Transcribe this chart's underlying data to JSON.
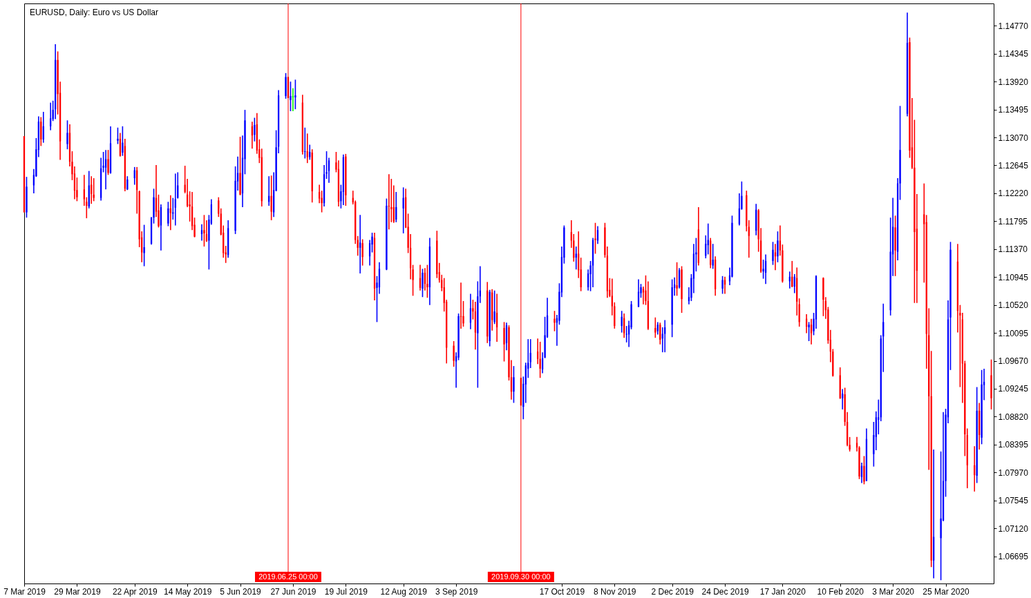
{
  "chart_data": {
    "type": "candlestick",
    "title": "EURUSD, Daily: Euro vs US Dollar",
    "x": [
      "2019-03-07",
      "2019-03-08",
      "2019-03-11",
      "2019-03-12",
      "2019-03-13",
      "2019-03-14",
      "2019-03-15",
      "2019-03-18",
      "2019-03-19",
      "2019-03-20",
      "2019-03-21",
      "2019-03-22",
      "2019-03-25",
      "2019-03-26",
      "2019-03-27",
      "2019-03-28",
      "2019-03-29",
      "2019-04-01",
      "2019-04-02",
      "2019-04-03",
      "2019-04-04",
      "2019-04-05",
      "2019-04-08",
      "2019-04-09",
      "2019-04-10",
      "2019-04-11",
      "2019-04-12",
      "2019-04-15",
      "2019-04-16",
      "2019-04-17",
      "2019-04-18",
      "2019-04-19",
      "2019-04-22",
      "2019-04-23",
      "2019-04-24",
      "2019-04-25",
      "2019-04-26",
      "2019-04-29",
      "2019-04-30",
      "2019-05-01",
      "2019-05-02",
      "2019-05-03",
      "2019-05-06",
      "2019-05-07",
      "2019-05-08",
      "2019-05-09",
      "2019-05-10",
      "2019-05-13",
      "2019-05-14",
      "2019-05-15",
      "2019-05-16",
      "2019-05-17",
      "2019-05-20",
      "2019-05-21",
      "2019-05-22",
      "2019-05-23",
      "2019-05-24",
      "2019-05-27",
      "2019-05-28",
      "2019-05-29",
      "2019-05-30",
      "2019-05-31",
      "2019-06-03",
      "2019-06-04",
      "2019-06-05",
      "2019-06-06",
      "2019-06-07",
      "2019-06-10",
      "2019-06-11",
      "2019-06-12",
      "2019-06-13",
      "2019-06-14",
      "2019-06-17",
      "2019-06-18",
      "2019-06-19",
      "2019-06-20",
      "2019-06-21",
      "2019-06-24",
      "2019-06-25",
      "2019-06-26",
      "2019-06-27",
      "2019-06-28",
      "2019-07-01",
      "2019-07-02",
      "2019-07-03",
      "2019-07-04",
      "2019-07-05",
      "2019-07-08",
      "2019-07-09",
      "2019-07-10",
      "2019-07-11",
      "2019-07-12",
      "2019-07-15",
      "2019-07-16",
      "2019-07-17",
      "2019-07-18",
      "2019-07-19",
      "2019-07-22",
      "2019-07-23",
      "2019-07-24",
      "2019-07-25",
      "2019-07-26",
      "2019-07-29",
      "2019-07-30",
      "2019-07-31",
      "2019-08-01",
      "2019-08-02",
      "2019-08-05",
      "2019-08-06",
      "2019-08-07",
      "2019-08-08",
      "2019-08-09",
      "2019-08-12",
      "2019-08-13",
      "2019-08-14",
      "2019-08-15",
      "2019-08-16",
      "2019-08-19",
      "2019-08-20",
      "2019-08-21",
      "2019-08-22",
      "2019-08-23",
      "2019-08-26",
      "2019-08-27",
      "2019-08-28",
      "2019-08-29",
      "2019-08-30",
      "2019-09-02",
      "2019-09-03",
      "2019-09-04",
      "2019-09-05",
      "2019-09-06",
      "2019-09-09",
      "2019-09-10",
      "2019-09-11",
      "2019-09-12",
      "2019-09-13",
      "2019-09-16",
      "2019-09-17",
      "2019-09-18",
      "2019-09-19",
      "2019-09-20",
      "2019-09-23",
      "2019-09-24",
      "2019-09-25",
      "2019-09-26",
      "2019-09-27",
      "2019-09-30",
      "2019-10-01",
      "2019-10-02",
      "2019-10-03",
      "2019-10-04",
      "2019-10-07",
      "2019-10-08",
      "2019-10-09",
      "2019-10-10",
      "2019-10-11",
      "2019-10-14",
      "2019-10-15",
      "2019-10-16",
      "2019-10-17",
      "2019-10-18",
      "2019-10-21",
      "2019-10-22",
      "2019-10-23",
      "2019-10-24",
      "2019-10-25",
      "2019-10-28",
      "2019-10-29",
      "2019-10-30",
      "2019-10-31",
      "2019-11-01",
      "2019-11-04",
      "2019-11-05",
      "2019-11-06",
      "2019-11-07",
      "2019-11-08",
      "2019-11-11",
      "2019-11-12",
      "2019-11-13",
      "2019-11-14",
      "2019-11-15",
      "2019-11-18",
      "2019-11-19",
      "2019-11-20",
      "2019-11-21",
      "2019-11-22",
      "2019-11-25",
      "2019-11-26",
      "2019-11-27",
      "2019-11-28",
      "2019-11-29",
      "2019-12-02",
      "2019-12-03",
      "2019-12-04",
      "2019-12-05",
      "2019-12-06",
      "2019-12-09",
      "2019-12-10",
      "2019-12-11",
      "2019-12-12",
      "2019-12-13",
      "2019-12-16",
      "2019-12-17",
      "2019-12-18",
      "2019-12-19",
      "2019-12-20",
      "2019-12-23",
      "2019-12-24",
      "2019-12-26",
      "2019-12-27",
      "2019-12-30",
      "2019-12-31",
      "2020-01-02",
      "2020-01-03",
      "2020-01-06",
      "2020-01-07",
      "2020-01-08",
      "2020-01-09",
      "2020-01-10",
      "2020-01-13",
      "2020-01-14",
      "2020-01-15",
      "2020-01-16",
      "2020-01-17",
      "2020-01-20",
      "2020-01-21",
      "2020-01-22",
      "2020-01-23",
      "2020-01-24",
      "2020-01-27",
      "2020-01-28",
      "2020-01-29",
      "2020-01-30",
      "2020-01-31",
      "2020-02-03",
      "2020-02-04",
      "2020-02-05",
      "2020-02-06",
      "2020-02-07",
      "2020-02-10",
      "2020-02-11",
      "2020-02-12",
      "2020-02-13",
      "2020-02-14",
      "2020-02-17",
      "2020-02-18",
      "2020-02-19",
      "2020-02-20",
      "2020-02-21",
      "2020-02-24",
      "2020-02-25",
      "2020-02-26",
      "2020-02-27",
      "2020-02-28",
      "2020-03-02",
      "2020-03-03",
      "2020-03-04",
      "2020-03-05",
      "2020-03-06",
      "2020-03-09",
      "2020-03-10",
      "2020-03-11",
      "2020-03-12",
      "2020-03-13",
      "2020-03-16",
      "2020-03-17",
      "2020-03-18",
      "2020-03-19",
      "2020-03-20",
      "2020-03-23",
      "2020-03-24",
      "2020-03-25",
      "2020-03-26",
      "2020-03-27",
      "2020-03-30",
      "2020-03-31",
      "2020-04-01",
      "2020-04-02",
      "2020-04-03",
      "2020-04-06",
      "2020-04-07",
      "2020-04-08",
      "2020-04-09",
      "2020-04-10",
      "2020-04-13"
    ],
    "ohlc": [
      [
        1.1309,
        1.1309,
        1.1193,
        1.1193
      ],
      [
        1.1193,
        1.1247,
        1.1185,
        1.1232
      ],
      [
        1.1234,
        1.1259,
        1.1222,
        1.125
      ],
      [
        1.1248,
        1.1306,
        1.1247,
        1.1289
      ],
      [
        1.1288,
        1.1339,
        1.1277,
        1.1331
      ],
      [
        1.1331,
        1.1338,
        1.1294,
        1.1304
      ],
      [
        1.1304,
        1.1346,
        1.1299,
        1.1324
      ],
      [
        1.1324,
        1.136,
        1.1318,
        1.1336
      ],
      [
        1.1335,
        1.1363,
        1.1332,
        1.1349
      ],
      [
        1.135,
        1.1449,
        1.1335,
        1.1425
      ],
      [
        1.1425,
        1.1438,
        1.1342,
        1.1373
      ],
      [
        1.1375,
        1.1392,
        1.1273,
        1.1301
      ],
      [
        1.1297,
        1.1333,
        1.1289,
        1.1314
      ],
      [
        1.1314,
        1.1327,
        1.1263,
        1.127
      ],
      [
        1.127,
        1.1286,
        1.1242,
        1.1251
      ],
      [
        1.1252,
        1.1263,
        1.1213,
        1.1226
      ],
      [
        1.1227,
        1.1246,
        1.121,
        1.1216
      ],
      [
        1.1228,
        1.125,
        1.1203,
        1.1213
      ],
      [
        1.1209,
        1.1216,
        1.1184,
        1.1203
      ],
      [
        1.1202,
        1.1256,
        1.1199,
        1.1234
      ],
      [
        1.1235,
        1.1248,
        1.1206,
        1.1221
      ],
      [
        1.122,
        1.1245,
        1.121,
        1.1215
      ],
      [
        1.1215,
        1.1276,
        1.1211,
        1.126
      ],
      [
        1.1261,
        1.1285,
        1.1254,
        1.1264
      ],
      [
        1.1261,
        1.1288,
        1.1228,
        1.1274
      ],
      [
        1.1274,
        1.1288,
        1.125,
        1.1253
      ],
      [
        1.1253,
        1.1324,
        1.1252,
        1.1298
      ],
      [
        1.1302,
        1.1322,
        1.1297,
        1.1305
      ],
      [
        1.1305,
        1.1314,
        1.1278,
        1.1279
      ],
      [
        1.1284,
        1.1324,
        1.1279,
        1.1299
      ],
      [
        1.1294,
        1.1305,
        1.1225,
        1.1229
      ],
      [
        1.1228,
        1.1248,
        1.1227,
        1.1243
      ],
      [
        1.1245,
        1.1262,
        1.1235,
        1.1257
      ],
      [
        1.1257,
        1.1262,
        1.1191,
        1.1227
      ],
      [
        1.1225,
        1.1226,
        1.114,
        1.1152
      ],
      [
        1.1155,
        1.1164,
        1.1117,
        1.1132
      ],
      [
        1.1131,
        1.1174,
        1.1111,
        1.114
      ],
      [
        1.1145,
        1.1186,
        1.1144,
        1.1185
      ],
      [
        1.1185,
        1.1229,
        1.1176,
        1.1216
      ],
      [
        1.1215,
        1.1265,
        1.1186,
        1.1194
      ],
      [
        1.1196,
        1.122,
        1.117,
        1.1172
      ],
      [
        1.1173,
        1.1205,
        1.1135,
        1.1201
      ],
      [
        1.1176,
        1.1209,
        1.1172,
        1.1199
      ],
      [
        1.1199,
        1.1219,
        1.1166,
        1.1192
      ],
      [
        1.1191,
        1.1215,
        1.1182,
        1.1193
      ],
      [
        1.12,
        1.1252,
        1.1173,
        1.1213
      ],
      [
        1.1215,
        1.1254,
        1.1214,
        1.1234
      ],
      [
        1.1235,
        1.1264,
        1.1222,
        1.1224
      ],
      [
        1.122,
        1.1244,
        1.1201,
        1.1203
      ],
      [
        1.1205,
        1.1225,
        1.1179,
        1.1202
      ],
      [
        1.1202,
        1.1224,
        1.1166,
        1.1172
      ],
      [
        1.1174,
        1.1185,
        1.1155,
        1.1156
      ],
      [
        1.116,
        1.1175,
        1.115,
        1.1166
      ],
      [
        1.1166,
        1.1189,
        1.1141,
        1.1161
      ],
      [
        1.116,
        1.1181,
        1.1148,
        1.1149
      ],
      [
        1.115,
        1.1189,
        1.1106,
        1.1182
      ],
      [
        1.1176,
        1.1213,
        1.1174,
        1.1205
      ],
      [
        1.1211,
        1.1216,
        1.1186,
        1.1191
      ],
      [
        1.1191,
        1.1199,
        1.1158,
        1.1159
      ],
      [
        1.1162,
        1.1173,
        1.1124,
        1.1131
      ],
      [
        1.1132,
        1.1142,
        1.1116,
        1.1129
      ],
      [
        1.1128,
        1.1181,
        1.1124,
        1.1169
      ],
      [
        1.1165,
        1.1263,
        1.116,
        1.1241
      ],
      [
        1.124,
        1.1278,
        1.1226,
        1.1253
      ],
      [
        1.1253,
        1.1308,
        1.1219,
        1.122
      ],
      [
        1.1222,
        1.131,
        1.1201,
        1.1276
      ],
      [
        1.1274,
        1.1349,
        1.1251,
        1.1333
      ],
      [
        1.1324,
        1.1331,
        1.129,
        1.131
      ],
      [
        1.1311,
        1.1337,
        1.1301,
        1.1326
      ],
      [
        1.1327,
        1.1344,
        1.1282,
        1.1287
      ],
      [
        1.1289,
        1.1304,
        1.1268,
        1.1276
      ],
      [
        1.1277,
        1.129,
        1.1202,
        1.121
      ],
      [
        1.1209,
        1.1248,
        1.1203,
        1.1218
      ],
      [
        1.1218,
        1.1249,
        1.1181,
        1.1194
      ],
      [
        1.1193,
        1.1254,
        1.1186,
        1.1227
      ],
      [
        1.1226,
        1.1318,
        1.1225,
        1.1292
      ],
      [
        1.1293,
        1.1379,
        1.1283,
        1.1371
      ],
      [
        1.137,
        1.1405,
        1.1366,
        1.1399
      ],
      [
        1.1399,
        1.1399,
        1.1367,
        1.1367
      ],
      [
        1.1364,
        1.1392,
        1.1347,
        1.137
      ],
      [
        1.1369,
        1.1382,
        1.1347,
        1.1369
      ],
      [
        1.1368,
        1.1395,
        1.135,
        1.1371
      ],
      [
        1.136,
        1.1372,
        1.1281,
        1.1285
      ],
      [
        1.1285,
        1.1322,
        1.1275,
        1.1286
      ],
      [
        1.1286,
        1.1313,
        1.1268,
        1.1277
      ],
      [
        1.1277,
        1.1296,
        1.1273,
        1.1285
      ],
      [
        1.1284,
        1.1289,
        1.1208,
        1.1225
      ],
      [
        1.1224,
        1.1235,
        1.1207,
        1.1214
      ],
      [
        1.1215,
        1.1226,
        1.1193,
        1.1207
      ],
      [
        1.1207,
        1.1265,
        1.1202,
        1.1251
      ],
      [
        1.1252,
        1.1286,
        1.1244,
        1.1254
      ],
      [
        1.1256,
        1.1276,
        1.1238,
        1.1272
      ],
      [
        1.1269,
        1.1285,
        1.1254,
        1.1258
      ],
      [
        1.1259,
        1.1272,
        1.1202,
        1.1209
      ],
      [
        1.121,
        1.1235,
        1.1199,
        1.1225
      ],
      [
        1.1224,
        1.1281,
        1.1204,
        1.1277
      ],
      [
        1.1278,
        1.1282,
        1.1203,
        1.1219
      ],
      [
        1.1215,
        1.1226,
        1.1205,
        1.1208
      ],
      [
        1.1209,
        1.1211,
        1.1145,
        1.1151
      ],
      [
        1.1151,
        1.1157,
        1.1127,
        1.1139
      ],
      [
        1.1139,
        1.1189,
        1.11,
        1.1147
      ],
      [
        1.1146,
        1.1152,
        1.1112,
        1.1125
      ],
      [
        1.1126,
        1.1151,
        1.1112,
        1.1146
      ],
      [
        1.1144,
        1.1162,
        1.1132,
        1.1156
      ],
      [
        1.1154,
        1.1162,
        1.1059,
        1.1077
      ],
      [
        1.1078,
        1.1096,
        1.1026,
        1.1086
      ],
      [
        1.1079,
        1.1117,
        1.1069,
        1.1107
      ],
      [
        1.1106,
        1.1214,
        1.1105,
        1.1203
      ],
      [
        1.1203,
        1.1251,
        1.1167,
        1.1202
      ],
      [
        1.1201,
        1.1244,
        1.1178,
        1.1198
      ],
      [
        1.1201,
        1.1234,
        1.1177,
        1.1179
      ],
      [
        1.1182,
        1.1224,
        1.1178,
        1.1201
      ],
      [
        1.1199,
        1.1231,
        1.1161,
        1.1215
      ],
      [
        1.1216,
        1.1229,
        1.1169,
        1.117
      ],
      [
        1.1171,
        1.1191,
        1.1131,
        1.1139
      ],
      [
        1.1139,
        1.116,
        1.1091,
        1.1108
      ],
      [
        1.1106,
        1.1113,
        1.1066,
        1.109
      ],
      [
        1.1093,
        1.1113,
        1.1074,
        1.1078
      ],
      [
        1.1077,
        1.1107,
        1.1064,
        1.1101
      ],
      [
        1.1101,
        1.1108,
        1.1074,
        1.1084
      ],
      [
        1.1084,
        1.1113,
        1.1063,
        1.1079
      ],
      [
        1.1079,
        1.1154,
        1.1052,
        1.1141
      ],
      [
        1.115,
        1.1165,
        1.1093,
        1.1099
      ],
      [
        1.1102,
        1.1116,
        1.1086,
        1.109
      ],
      [
        1.109,
        1.1098,
        1.1073,
        1.1078
      ],
      [
        1.1079,
        1.1093,
        1.1042,
        1.1055
      ],
      [
        1.1057,
        1.106,
        1.0963,
        1.0987
      ],
      [
        1.099,
        1.0997,
        1.0958,
        1.0967
      ],
      [
        1.0966,
        1.098,
        1.0926,
        1.0974
      ],
      [
        1.0972,
        1.1039,
        1.0968,
        1.1035
      ],
      [
        1.1035,
        1.1086,
        1.1016,
        1.1034
      ],
      [
        1.1035,
        1.1058,
        1.1019,
        1.1024
      ],
      [
        1.1025,
        1.1069,
        1.1015,
        1.1047
      ],
      [
        1.1047,
        1.106,
        1.103,
        1.1042
      ],
      [
        1.1042,
        1.1057,
        1.0984,
        1.101
      ],
      [
        1.1009,
        1.1088,
        1.0926,
        1.1065
      ],
      [
        1.1065,
        1.1111,
        1.1055,
        1.1074
      ],
      [
        1.1074,
        1.1087,
        1.0994,
        1.1004
      ],
      [
        1.0997,
        1.1075,
        1.0989,
        1.1072
      ],
      [
        1.1071,
        1.1076,
        1.1013,
        1.1029
      ],
      [
        1.1026,
        1.1074,
        1.1023,
        1.1042
      ],
      [
        1.104,
        1.1069,
        1.0996,
        1.1018
      ],
      [
        1.1017,
        1.1026,
        1.0966,
        1.0992
      ],
      [
        1.0994,
        1.1025,
        1.0983,
        1.1021
      ],
      [
        1.1018,
        1.1021,
        1.0937,
        1.0942
      ],
      [
        1.0942,
        1.0968,
        1.0908,
        1.092
      ],
      [
        1.092,
        1.0959,
        1.0903,
        1.0942
      ],
      [
        1.0941,
        1.0941,
        1.0899,
        1.0899
      ],
      [
        1.0897,
        1.0943,
        1.0878,
        1.0932
      ],
      [
        1.0931,
        1.0964,
        1.0903,
        1.096
      ],
      [
        1.0955,
        1.1,
        1.0941,
        1.0964
      ],
      [
        1.0965,
        1.1,
        1.0956,
        1.0979
      ],
      [
        1.0981,
        1.1001,
        1.0962,
        1.097
      ],
      [
        1.097,
        1.0996,
        1.0941,
        1.0955
      ],
      [
        1.0954,
        1.098,
        1.0948,
        1.0971
      ],
      [
        1.0972,
        1.1034,
        1.0971,
        1.1006
      ],
      [
        1.1003,
        1.1063,
        1.1002,
        1.1036
      ],
      [
        1.1031,
        1.1043,
        1.1012,
        1.1025
      ],
      [
        1.1025,
        1.1037,
        1.099,
        1.1032
      ],
      [
        1.1028,
        1.1085,
        1.1022,
        1.1072
      ],
      [
        1.1071,
        1.1141,
        1.1064,
        1.1125
      ],
      [
        1.1124,
        1.1173,
        1.1115,
        1.117
      ],
      [
        1.1163,
        1.1181,
        1.1139,
        1.115
      ],
      [
        1.115,
        1.116,
        1.1118,
        1.1124
      ],
      [
        1.1124,
        1.1141,
        1.1106,
        1.113
      ],
      [
        1.113,
        1.1164,
        1.1093,
        1.1105
      ],
      [
        1.1106,
        1.1124,
        1.1073,
        1.1079
      ],
      [
        1.1079,
        1.1106,
        1.1074,
        1.11
      ],
      [
        1.1099,
        1.1119,
        1.1073,
        1.1112
      ],
      [
        1.1112,
        1.1154,
        1.1079,
        1.1151
      ],
      [
        1.1153,
        1.1177,
        1.113,
        1.1151
      ],
      [
        1.115,
        1.1172,
        1.1145,
        1.1166
      ],
      [
        1.117,
        1.1177,
        1.1124,
        1.1128
      ],
      [
        1.1127,
        1.1141,
        1.1063,
        1.1073
      ],
      [
        1.1075,
        1.1093,
        1.1064,
        1.1066
      ],
      [
        1.1066,
        1.1092,
        1.1036,
        1.105
      ],
      [
        1.105,
        1.1056,
        1.1016,
        1.102
      ],
      [
        1.102,
        1.1043,
        1.101,
        1.1034
      ],
      [
        1.1032,
        1.1039,
        1.1002,
        1.1009
      ],
      [
        1.1007,
        1.102,
        1.0995,
        1.1008
      ],
      [
        1.1007,
        1.1028,
        1.0988,
        1.1021
      ],
      [
        1.1018,
        1.1058,
        1.1015,
        1.1053
      ],
      [
        1.1049,
        1.1091,
        1.1049,
        1.1072
      ],
      [
        1.107,
        1.1084,
        1.1063,
        1.1079
      ],
      [
        1.1077,
        1.108,
        1.1053,
        1.1071
      ],
      [
        1.1074,
        1.1097,
        1.1052,
        1.1058
      ],
      [
        1.1058,
        1.1088,
        1.1014,
        1.1016
      ],
      [
        1.1017,
        1.1033,
        1.1002,
        1.101
      ],
      [
        1.1012,
        1.1026,
        1.1007,
        1.1022
      ],
      [
        1.1022,
        1.1025,
        1.0992,
        1.0999
      ],
      [
        1.1001,
        1.1018,
        1.098,
        1.1008
      ],
      [
        1.1008,
        1.1029,
        1.098,
        1.1018
      ],
      [
        1.1022,
        1.1091,
        1.1003,
        1.1079
      ],
      [
        1.1078,
        1.1094,
        1.1066,
        1.1083
      ],
      [
        1.1082,
        1.1117,
        1.1066,
        1.1077
      ],
      [
        1.1079,
        1.1108,
        1.1077,
        1.1105
      ],
      [
        1.1106,
        1.1111,
        1.104,
        1.1061
      ],
      [
        1.1058,
        1.1079,
        1.1053,
        1.1064
      ],
      [
        1.1063,
        1.1099,
        1.1058,
        1.1093
      ],
      [
        1.1092,
        1.1145,
        1.107,
        1.113
      ],
      [
        1.1129,
        1.1154,
        1.1103,
        1.1132
      ],
      [
        1.1167,
        1.1201,
        1.1112,
        1.1116
      ],
      [
        1.1127,
        1.1158,
        1.1123,
        1.1145
      ],
      [
        1.1143,
        1.1176,
        1.1129,
        1.1151
      ],
      [
        1.115,
        1.1154,
        1.1108,
        1.1113
      ],
      [
        1.1112,
        1.1145,
        1.1107,
        1.1121
      ],
      [
        1.1121,
        1.1126,
        1.1066,
        1.1076
      ],
      [
        1.1077,
        1.1096,
        1.1069,
        1.109
      ],
      [
        1.109,
        1.1095,
        1.1069,
        1.1083
      ],
      [
        1.1088,
        1.1109,
        1.1082,
        1.1097
      ],
      [
        1.1095,
        1.1188,
        1.1094,
        1.1177
      ],
      [
        1.1175,
        1.1222,
        1.1173,
        1.1199
      ],
      [
        1.1198,
        1.124,
        1.1197,
        1.1218
      ],
      [
        1.1219,
        1.1226,
        1.1164,
        1.1172
      ],
      [
        1.1171,
        1.1181,
        1.1124,
        1.1157
      ],
      [
        1.1165,
        1.1206,
        1.1158,
        1.1197
      ],
      [
        1.1196,
        1.1198,
        1.1133,
        1.1152
      ],
      [
        1.115,
        1.1169,
        1.1101,
        1.1103
      ],
      [
        1.1103,
        1.1121,
        1.1092,
        1.1107
      ],
      [
        1.1101,
        1.1129,
        1.1084,
        1.1119
      ],
      [
        1.1119,
        1.1148,
        1.1113,
        1.1136
      ],
      [
        1.1132,
        1.1145,
        1.1105,
        1.1126
      ],
      [
        1.1126,
        1.1164,
        1.1117,
        1.115
      ],
      [
        1.115,
        1.1173,
        1.1127,
        1.1135
      ],
      [
        1.1135,
        1.1144,
        1.1086,
        1.1088
      ],
      [
        1.1088,
        1.1103,
        1.1077,
        1.1095
      ],
      [
        1.1095,
        1.1119,
        1.1079,
        1.108
      ],
      [
        1.108,
        1.1099,
        1.107,
        1.1095
      ],
      [
        1.1093,
        1.1109,
        1.1036,
        1.1057
      ],
      [
        1.1053,
        1.1062,
        1.1019,
        1.1026
      ],
      [
        1.1031,
        1.1038,
        1.1009,
        1.1019
      ],
      [
        1.1018,
        1.1026,
        1.0997,
        1.1022
      ],
      [
        1.1022,
        1.1031,
        1.0992,
        1.1009
      ],
      [
        1.1012,
        1.104,
        1.1006,
        1.1031
      ],
      [
        1.103,
        1.1097,
        1.1016,
        1.1096
      ],
      [
        1.1093,
        1.1094,
        1.1035,
        1.106
      ],
      [
        1.1058,
        1.1064,
        1.1031,
        1.1044
      ],
      [
        1.1045,
        1.1049,
        1.0993,
        1.0998
      ],
      [
        1.0999,
        1.1014,
        1.0965,
        1.0981
      ],
      [
        1.0981,
        1.0985,
        1.0943,
        1.0944
      ],
      [
        1.0945,
        1.0957,
        1.0909,
        1.091
      ],
      [
        1.091,
        1.0924,
        1.0893,
        1.0917
      ],
      [
        1.0916,
        1.0926,
        1.0868,
        1.0874
      ],
      [
        1.0874,
        1.0889,
        1.0837,
        1.0839
      ],
      [
        1.0839,
        1.0851,
        1.0829,
        1.0832
      ],
      [
        1.0842,
        1.0851,
        1.0829,
        1.0835
      ],
      [
        1.0835,
        1.0837,
        1.0787,
        1.0791
      ],
      [
        1.079,
        1.0812,
        1.0781,
        1.0807
      ],
      [
        1.0807,
        1.0822,
        1.0779,
        1.0783
      ],
      [
        1.0784,
        1.0864,
        1.0784,
        1.0848
      ],
      [
        1.0825,
        1.0874,
        1.0806,
        1.0854
      ],
      [
        1.0851,
        1.089,
        1.0831,
        1.0881
      ],
      [
        1.0877,
        1.0908,
        1.0855,
        1.0881
      ],
      [
        1.0881,
        1.1006,
        1.0875,
        1.1001
      ],
      [
        1.1004,
        1.1054,
        1.095,
        1.1026
      ],
      [
        1.1044,
        1.1185,
        1.1036,
        1.1133
      ],
      [
        1.1129,
        1.1215,
        1.1096,
        1.1171
      ],
      [
        1.117,
        1.1188,
        1.1096,
        1.1135
      ],
      [
        1.1133,
        1.1245,
        1.112,
        1.1237
      ],
      [
        1.1237,
        1.1355,
        1.1212,
        1.1288
      ],
      [
        1.1343,
        1.1497,
        1.1339,
        1.1451
      ],
      [
        1.1452,
        1.1459,
        1.1276,
        1.1287
      ],
      [
        1.1292,
        1.1367,
        1.1259,
        1.1261
      ],
      [
        1.1261,
        1.1334,
        1.1055,
        1.1163
      ],
      [
        1.1168,
        1.1221,
        1.1055,
        1.1104
      ],
      [
        1.119,
        1.1237,
        1.1086,
        1.1175
      ],
      [
        1.1178,
        1.1189,
        1.0955,
        1.1008
      ],
      [
        1.1006,
        1.1047,
        1.0801,
        1.0913
      ],
      [
        1.0913,
        1.0982,
        1.0653,
        1.0663
      ],
      [
        1.0663,
        1.0832,
        1.0636,
        1.0699
      ],
      [
        1.0697,
        1.0829,
        1.0633,
        1.0727
      ],
      [
        1.0724,
        1.0889,
        1.0723,
        1.0784
      ],
      [
        1.0784,
        1.0894,
        1.076,
        1.0885
      ],
      [
        1.0881,
        1.1059,
        1.0872,
        1.103
      ],
      [
        1.1033,
        1.1148,
        1.0953,
        1.1136
      ],
      [
        1.1118,
        1.1145,
        1.101,
        1.1043
      ],
      [
        1.104,
        1.1052,
        1.0927,
        1.1036
      ],
      [
        1.103,
        1.104,
        1.0903,
        1.0963
      ],
      [
        1.0963,
        1.0967,
        1.0822,
        1.0855
      ],
      [
        1.0854,
        1.0864,
        1.0773,
        1.0808
      ],
      [
        1.0808,
        1.0837,
        1.0768,
        1.0793
      ],
      [
        1.0792,
        1.0927,
        1.0781,
        1.0891
      ],
      [
        1.0891,
        1.0903,
        1.0832,
        1.0854
      ],
      [
        1.085,
        1.0953,
        1.084,
        1.0931
      ],
      [
        1.093,
        1.0955,
        1.0907,
        1.0935
      ],
      [
        1.0945,
        1.0969,
        1.0893,
        1.091
      ]
    ],
    "colors": [
      "#ff0000",
      "#0000ff",
      "#0000ff",
      "#0000ff",
      "#0000ff",
      "#ff0000",
      "#0000ff",
      "#0000ff",
      "#0000ff",
      "#0000ff",
      "#ff0000",
      "#ff0000",
      "#0000ff",
      "#ff0000",
      "#ff0000",
      "#ff0000",
      "#ff0000",
      "#ff0000",
      "#ff0000",
      "#0000ff",
      "#ff0000",
      "#ff0000",
      "#0000ff",
      "#0000ff",
      "#0000ff",
      "#ff0000",
      "#0000ff",
      "#0000ff",
      "#ff0000",
      "#0000ff",
      "#ff0000",
      "#0000ff",
      "#0000ff",
      "#ff0000",
      "#ff0000",
      "#ff0000",
      "#0000ff",
      "#0000ff",
      "#0000ff",
      "#ff0000",
      "#ff0000",
      "#0000ff",
      "#0000ff",
      "#ff0000",
      "#0000ff",
      "#0000ff",
      "#0000ff",
      "#ff0000",
      "#ff0000",
      "#ff0000",
      "#ff0000",
      "#ff0000",
      "#0000ff",
      "#ff0000",
      "#ff0000",
      "#0000ff",
      "#0000ff",
      "#ff0000",
      "#ff0000",
      "#ff0000",
      "#ff0000",
      "#0000ff",
      "#0000ff",
      "#0000ff",
      "#ff0000",
      "#0000ff",
      "#0000ff",
      "#ff0000",
      "#0000ff",
      "#ff0000",
      "#ff0000",
      "#ff0000",
      "#0000ff",
      "#ff0000",
      "#0000ff",
      "#0000ff",
      "#0000ff",
      "#0000ff",
      "#ff0000",
      "#0000ff",
      "#00ff00",
      "#0000ff",
      "#ff0000",
      "#0000ff",
      "#ff0000",
      "#0000ff",
      "#ff0000",
      "#ff0000",
      "#ff0000",
      "#0000ff",
      "#0000ff",
      "#0000ff",
      "#ff0000",
      "#ff0000",
      "#0000ff",
      "#0000ff",
      "#ff0000",
      "#ff0000",
      "#ff0000",
      "#ff0000",
      "#0000ff",
      "#ff0000",
      "#0000ff",
      "#0000ff",
      "#ff0000",
      "#0000ff",
      "#0000ff",
      "#0000ff",
      "#ff0000",
      "#ff0000",
      "#ff0000",
      "#0000ff",
      "#0000ff",
      "#ff0000",
      "#ff0000",
      "#ff0000",
      "#ff0000",
      "#ff0000",
      "#0000ff",
      "#ff0000",
      "#ff0000",
      "#0000ff",
      "#ff0000",
      "#ff0000",
      "#ff0000",
      "#ff0000",
      "#ff0000",
      "#ff0000",
      "#0000ff",
      "#0000ff",
      "#ff0000",
      "#ff0000",
      "#0000ff",
      "#ff0000",
      "#ff0000",
      "#0000ff",
      "#0000ff",
      "#ff0000",
      "#0000ff",
      "#ff0000",
      "#0000ff",
      "#ff0000",
      "#ff0000",
      "#0000ff",
      "#ff0000",
      "#ff0000",
      "#0000ff",
      "#ff0000",
      "#0000ff",
      "#0000ff",
      "#0000ff",
      "#0000ff",
      "#ff0000",
      "#ff0000",
      "#0000ff",
      "#0000ff",
      "#0000ff",
      "#ff0000",
      "#0000ff",
      "#0000ff",
      "#0000ff",
      "#0000ff",
      "#ff0000",
      "#ff0000",
      "#0000ff",
      "#ff0000",
      "#ff0000",
      "#0000ff",
      "#0000ff",
      "#0000ff",
      "#ff0000",
      "#0000ff",
      "#ff0000",
      "#ff0000",
      "#ff0000",
      "#ff0000",
      "#ff0000",
      "#0000ff",
      "#ff0000",
      "#0000ff",
      "#0000ff",
      "#0000ff",
      "#0000ff",
      "#0000ff",
      "#ff0000",
      "#ff0000",
      "#ff0000",
      "#ff0000",
      "#0000ff",
      "#ff0000",
      "#0000ff",
      "#0000ff",
      "#0000ff",
      "#0000ff",
      "#ff0000",
      "#0000ff",
      "#ff0000",
      "#0000ff",
      "#0000ff",
      "#0000ff",
      "#0000ff",
      "#ff0000",
      "#0000ff",
      "#0000ff",
      "#ff0000",
      "#0000ff",
      "#ff0000",
      "#0000ff",
      "#ff0000",
      "#0000ff",
      "#0000ff",
      "#0000ff",
      "#0000ff",
      "#ff0000",
      "#ff0000",
      "#0000ff",
      "#ff0000",
      "#ff0000",
      "#0000ff",
      "#0000ff",
      "#0000ff",
      "#ff0000",
      "#0000ff",
      "#ff0000",
      "#ff0000",
      "#0000ff",
      "#ff0000",
      "#0000ff",
      "#ff0000",
      "#ff0000",
      "#ff0000",
      "#0000ff",
      "#ff0000",
      "#0000ff",
      "#0000ff",
      "#ff0000",
      "#ff0000",
      "#ff0000",
      "#ff0000",
      "#ff0000",
      "#ff0000",
      "#0000ff",
      "#ff0000",
      "#ff0000",
      "#ff0000",
      "#ff0000",
      "#ff0000",
      "#0000ff",
      "#ff0000",
      "#0000ff",
      "#0000ff",
      "#0000ff",
      "#0000ff",
      "#0000ff",
      "#0000ff",
      "#0000ff",
      "#0000ff",
      "#ff0000",
      "#0000ff",
      "#0000ff",
      "#0000ff",
      "#ff0000",
      "#ff0000",
      "#ff0000",
      "#ff0000",
      "#ff0000",
      "#ff0000",
      "#ff0000",
      "#ff0000",
      "#0000ff",
      "#0000ff",
      "#0000ff",
      "#0000ff",
      "#0000ff",
      "#0000ff",
      "#ff0000",
      "#ff0000",
      "#ff0000",
      "#ff0000",
      "#ff0000",
      "#ff0000",
      "#0000ff",
      "#ff0000",
      "#0000ff",
      "#0000ff",
      "#ff0000"
    ],
    "xlim": [
      "2019-03-07",
      "2020-04-14"
    ],
    "xticks": [
      {
        "value": "2019-03-07",
        "label": "7 Mar 2019"
      },
      {
        "value": "2019-03-29",
        "label": "29 Mar 2019"
      },
      {
        "value": "2019-04-22",
        "label": "22 Apr 2019"
      },
      {
        "value": "2019-05-14",
        "label": "14 May 2019"
      },
      {
        "value": "2019-06-05",
        "label": "5 Jun 2019"
      },
      {
        "value": "2019-06-27",
        "label": "27 Jun 2019"
      },
      {
        "value": "2019-07-19",
        "label": "19 Jul 2019"
      },
      {
        "value": "2019-08-12",
        "label": "12 Aug 2019"
      },
      {
        "value": "2019-09-03",
        "label": "3 Sep 2019"
      },
      {
        "value": "2019-10-17",
        "label": "17 Oct 2019"
      },
      {
        "value": "2019-11-08",
        "label": "8 Nov 2019"
      },
      {
        "value": "2019-12-02",
        "label": "2 Dec 2019"
      },
      {
        "value": "2019-12-24",
        "label": "24 Dec 2019"
      },
      {
        "value": "2020-01-17",
        "label": "17 Jan 2020"
      },
      {
        "value": "2020-02-10",
        "label": "10 Feb 2020"
      },
      {
        "value": "2020-03-03",
        "label": "3 Mar 2020"
      },
      {
        "value": "2020-03-25",
        "label": "25 Mar 2020"
      }
    ],
    "ylim": [
      1.0628,
      1.1511
    ],
    "yticks": [
      1.06695,
      {
        "value": 1.0712,
        "label": "1.07120"
      },
      1.07545,
      {
        "value": 1.0797,
        "label": "1.07970"
      },
      1.08395,
      {
        "value": 1.0882,
        "label": "1.08820"
      },
      1.09245,
      {
        "value": 1.0967,
        "label": "1.09670"
      },
      1.10095,
      {
        "value": 1.1052,
        "label": "1.10520"
      },
      1.10945,
      {
        "value": 1.1137,
        "label": "1.11370"
      },
      1.11795,
      {
        "value": 1.1222,
        "label": "1.12220"
      },
      1.12645,
      {
        "value": 1.1307,
        "label": "1.13070"
      },
      1.13495,
      {
        "value": 1.1392,
        "label": "1.13920"
      },
      1.14345,
      {
        "value": 1.1477,
        "label": "1.14770"
      }
    ],
    "ref_lines": [
      {
        "axis": "x",
        "value": "2019-06-25",
        "label": "2019.06.25 00:00",
        "color": "#ff0000"
      },
      {
        "axis": "x",
        "value": "2019-09-30",
        "label": "2019.09.30 00:00",
        "color": "#ff0000"
      }
    ]
  }
}
